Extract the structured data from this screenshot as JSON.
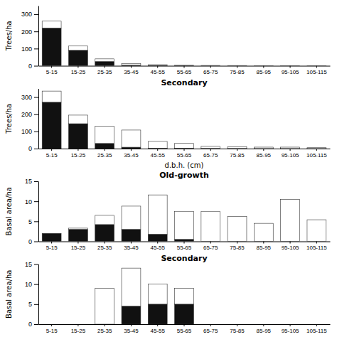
{
  "chart_data": [
    {
      "type": "bar",
      "stacked": true,
      "ylabel": "Trees/ha",
      "categories": [
        "5-15",
        "15-25",
        "25-35",
        "35-45",
        "45-55",
        "55-65",
        "65-75",
        "75-85",
        "85-95",
        "95-105",
        "105-115"
      ],
      "series": [
        {
          "color": "#111111",
          "values": [
            220,
            90,
            25,
            5,
            2,
            1,
            0.3,
            0.2,
            0.1,
            0.1,
            0.05
          ]
        },
        {
          "color": "#ffffff",
          "values": [
            40,
            25,
            15,
            8,
            4,
            2,
            1.5,
            1.2,
            0.8,
            0.7,
            0.4
          ]
        }
      ],
      "ylim": [
        0,
        350
      ],
      "yticks": [
        0,
        100,
        200,
        300
      ]
    },
    {
      "type": "bar",
      "stacked": true,
      "title": "Secondary",
      "ylabel": "Trees/ha",
      "xlabel": "d.b.h. (cm)",
      "categories": [
        "5-15",
        "15-25",
        "25-35",
        "35-45",
        "45-55",
        "55-65",
        "65-75",
        "75-85",
        "85-95",
        "95-105",
        "105-115"
      ],
      "series": [
        {
          "color": "#111111",
          "values": [
            270,
            145,
            30,
            8,
            2,
            2,
            1,
            0.8,
            0.4,
            0.4,
            0.2
          ]
        },
        {
          "color": "#ffffff",
          "values": [
            65,
            50,
            100,
            100,
            40,
            28,
            12,
            10,
            8,
            8,
            5
          ]
        }
      ],
      "ylim": [
        0,
        350
      ],
      "yticks": [
        0,
        100,
        200,
        300
      ]
    },
    {
      "type": "bar",
      "stacked": true,
      "title": "Old-growth",
      "ylabel": "Basal area/ha",
      "categories": [
        "5-15",
        "15-25",
        "25-35",
        "35-45",
        "45-55",
        "55-65",
        "65-75",
        "75-85",
        "85-95",
        "95-105",
        "105-115"
      ],
      "series": [
        {
          "color": "#111111",
          "values": [
            2.0,
            3.0,
            4.2,
            3.0,
            1.8,
            0.5,
            0,
            0,
            0,
            0,
            0
          ]
        },
        {
          "color": "#ffffff",
          "values": [
            0,
            0.3,
            2.3,
            5.8,
            9.8,
            7.0,
            7.5,
            6.2,
            4.5,
            10.5,
            5.4
          ]
        }
      ],
      "ylim": [
        0,
        15
      ],
      "yticks": [
        0,
        5,
        10,
        15
      ]
    },
    {
      "type": "bar",
      "stacked": true,
      "title": "Secondary",
      "ylabel": "Basal area/ha",
      "categories": [
        "5-15",
        "15-25",
        "25-35",
        "35-45",
        "45-55",
        "55-65",
        "65-75",
        "75-85",
        "85-95",
        "95-105",
        "105-115"
      ],
      "series": [
        {
          "color": "#111111",
          "values": [
            0,
            0,
            0,
            4.5,
            5.0,
            5.0,
            0,
            0,
            0,
            0,
            0
          ]
        },
        {
          "color": "#ffffff",
          "values": [
            0,
            0,
            9.0,
            9.5,
            5.0,
            4.0,
            0,
            0,
            0,
            0,
            0
          ]
        }
      ],
      "ylim": [
        0,
        15
      ],
      "yticks": [
        0,
        5,
        10,
        15
      ]
    }
  ]
}
